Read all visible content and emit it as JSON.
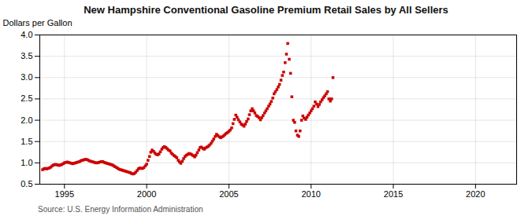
{
  "chart_data": {
    "type": "scatter",
    "title": "New Hampshire Conventional Gasoline Premium Retail Sales by All Sellers",
    "ylabel": "Dollars per Gallon",
    "caption": "Source: U.S. Energy Information Administration",
    "color": "#cc0000",
    "marker": "square",
    "grid": true,
    "xlim": [
      1993.5,
      2022.5
    ],
    "ylim": [
      0.5,
      4.0
    ],
    "xticks": [
      1995,
      2000,
      2005,
      2010,
      2015,
      2020
    ],
    "yticks": [
      0.5,
      {
        "value": 1.0,
        "label": "1.0"
      },
      1.5,
      {
        "value": 2.0,
        "label": "2.0"
      },
      2.5,
      {
        "value": 3.0,
        "label": "3.0"
      },
      3.5,
      {
        "value": 4.0,
        "label": "4.0"
      }
    ],
    "x": [
      1993.67,
      1993.75,
      1993.83,
      1993.92,
      1994.0,
      1994.08,
      1994.17,
      1994.25,
      1994.33,
      1994.42,
      1994.5,
      1994.58,
      1994.67,
      1994.75,
      1994.83,
      1994.92,
      1995.0,
      1995.08,
      1995.17,
      1995.25,
      1995.33,
      1995.42,
      1995.5,
      1995.58,
      1995.67,
      1995.75,
      1995.83,
      1995.92,
      1996.0,
      1996.08,
      1996.17,
      1996.25,
      1996.33,
      1996.42,
      1996.5,
      1996.58,
      1996.67,
      1996.75,
      1996.83,
      1996.92,
      1997.0,
      1997.08,
      1997.17,
      1997.25,
      1997.33,
      1997.42,
      1997.5,
      1997.58,
      1997.67,
      1997.75,
      1997.83,
      1997.92,
      1998.0,
      1998.08,
      1998.17,
      1998.25,
      1998.33,
      1998.42,
      1998.5,
      1998.58,
      1998.67,
      1998.75,
      1998.83,
      1998.92,
      1999.0,
      1999.08,
      1999.17,
      1999.25,
      1999.33,
      1999.42,
      1999.5,
      1999.58,
      1999.67,
      1999.75,
      1999.83,
      1999.92,
      2000.0,
      2000.08,
      2000.17,
      2000.25,
      2000.33,
      2000.42,
      2000.5,
      2000.58,
      2000.67,
      2000.75,
      2000.83,
      2000.92,
      2001.0,
      2001.08,
      2001.17,
      2001.25,
      2001.33,
      2001.42,
      2001.5,
      2001.58,
      2001.67,
      2001.75,
      2001.83,
      2001.92,
      2002.0,
      2002.08,
      2002.17,
      2002.25,
      2002.33,
      2002.42,
      2002.5,
      2002.58,
      2002.67,
      2002.75,
      2002.83,
      2002.92,
      2003.0,
      2003.08,
      2003.17,
      2003.25,
      2003.33,
      2003.42,
      2003.5,
      2003.58,
      2003.67,
      2003.75,
      2003.83,
      2003.92,
      2004.0,
      2004.08,
      2004.17,
      2004.25,
      2004.33,
      2004.42,
      2004.5,
      2004.58,
      2004.67,
      2004.75,
      2004.83,
      2004.92,
      2005.0,
      2005.08,
      2005.17,
      2005.25,
      2005.33,
      2005.42,
      2005.5,
      2005.58,
      2005.67,
      2005.75,
      2005.83,
      2005.92,
      2006.0,
      2006.08,
      2006.17,
      2006.25,
      2006.33,
      2006.42,
      2006.5,
      2006.58,
      2006.67,
      2006.75,
      2006.83,
      2006.92,
      2007.0,
      2007.08,
      2007.17,
      2007.25,
      2007.33,
      2007.42,
      2007.5,
      2007.58,
      2007.67,
      2007.75,
      2007.83,
      2007.92,
      2008.0,
      2008.08,
      2008.17,
      2008.25,
      2008.33,
      2008.42,
      2008.5,
      2008.58,
      2008.67,
      2008.75,
      2008.83,
      2008.92,
      2009.0,
      2009.08,
      2009.17,
      2009.25,
      2009.33,
      2009.42,
      2009.5,
      2009.58,
      2009.67,
      2009.75,
      2009.83,
      2009.92,
      2010.0,
      2010.08,
      2010.17,
      2010.25,
      2010.33,
      2010.42,
      2010.5,
      2010.58,
      2010.67,
      2010.75,
      2010.83,
      2010.92,
      2011.0,
      2011.08,
      2011.17,
      2011.25,
      2011.33
    ],
    "values": [
      0.84,
      0.86,
      0.87,
      0.86,
      0.87,
      0.88,
      0.9,
      0.93,
      0.95,
      0.96,
      0.96,
      0.95,
      0.94,
      0.95,
      0.96,
      0.98,
      1.0,
      1.01,
      1.02,
      1.01,
      1.0,
      0.99,
      0.98,
      0.99,
      1.0,
      1.01,
      1.02,
      1.03,
      1.05,
      1.06,
      1.07,
      1.08,
      1.08,
      1.07,
      1.05,
      1.04,
      1.03,
      1.02,
      1.01,
      1.0,
      1.0,
      1.01,
      1.02,
      1.03,
      1.03,
      1.01,
      1.0,
      0.99,
      0.98,
      0.97,
      0.96,
      0.95,
      0.93,
      0.91,
      0.89,
      0.87,
      0.85,
      0.84,
      0.83,
      0.82,
      0.81,
      0.8,
      0.79,
      0.78,
      0.77,
      0.75,
      0.74,
      0.75,
      0.78,
      0.82,
      0.86,
      0.88,
      0.87,
      0.87,
      0.89,
      0.93,
      0.97,
      1.06,
      1.15,
      1.25,
      1.3,
      1.27,
      1.23,
      1.2,
      1.19,
      1.21,
      1.26,
      1.32,
      1.36,
      1.38,
      1.36,
      1.33,
      1.3,
      1.28,
      1.23,
      1.2,
      1.17,
      1.15,
      1.12,
      1.06,
      1.02,
      0.99,
      1.04,
      1.1,
      1.15,
      1.18,
      1.2,
      1.22,
      1.21,
      1.19,
      1.17,
      1.14,
      1.18,
      1.24,
      1.3,
      1.36,
      1.37,
      1.34,
      1.32,
      1.35,
      1.37,
      1.39,
      1.42,
      1.46,
      1.51,
      1.56,
      1.62,
      1.67,
      1.64,
      1.61,
      1.59,
      1.61,
      1.63,
      1.66,
      1.69,
      1.71,
      1.74,
      1.77,
      1.82,
      1.92,
      2.02,
      2.12,
      2.07,
      2.01,
      1.96,
      1.91,
      1.89,
      1.86,
      1.91,
      1.97,
      2.03,
      2.13,
      2.22,
      2.27,
      2.22,
      2.17,
      2.11,
      2.09,
      2.06,
      2.01,
      2.06,
      2.11,
      2.17,
      2.22,
      2.27,
      2.33,
      2.38,
      2.44,
      2.52,
      2.62,
      2.67,
      2.72,
      2.78,
      2.84,
      2.94,
      3.05,
      3.13,
      3.35,
      3.55,
      3.8,
      3.43,
      3.1,
      2.55,
      2.0,
      1.95,
      1.75,
      1.65,
      1.62,
      1.75,
      2.0,
      2.1,
      2.05,
      2.02,
      2.07,
      2.12,
      2.17,
      2.22,
      2.27,
      2.33,
      2.43,
      2.38,
      2.32,
      2.37,
      2.43,
      2.48,
      2.53,
      2.57,
      2.62,
      2.67,
      2.5,
      2.45,
      2.5,
      3.0
    ]
  }
}
